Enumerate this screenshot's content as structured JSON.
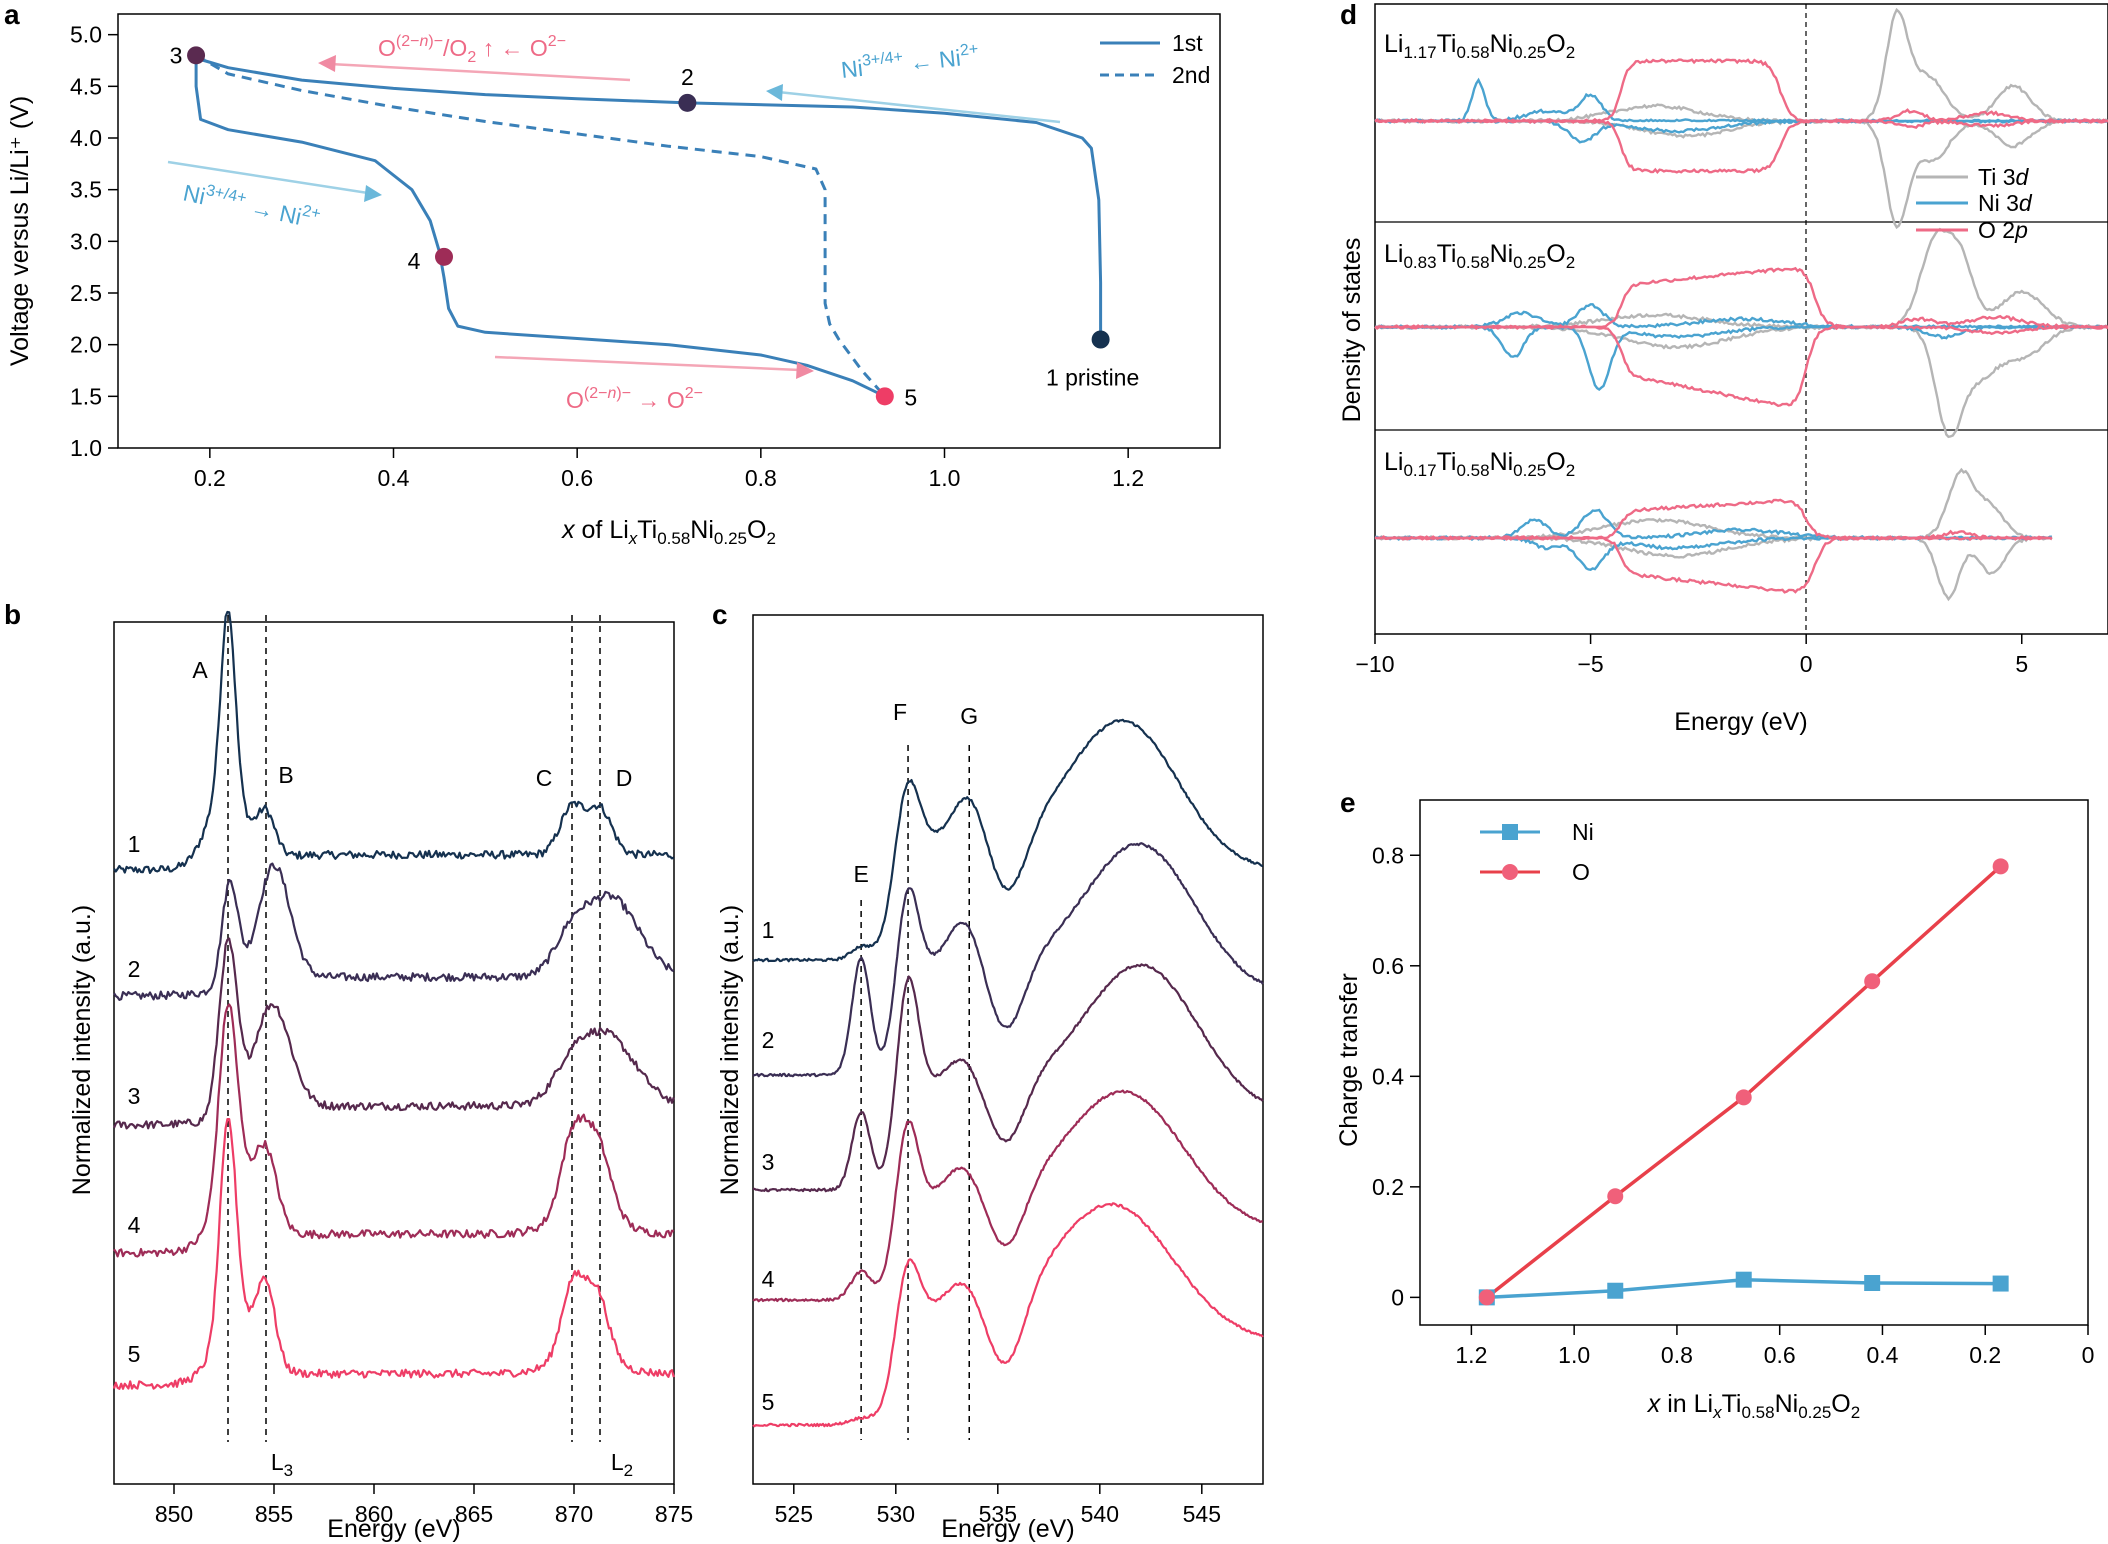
{
  "colors": {
    "navy": "#1a3a5c",
    "blue": "#3a80b8",
    "ni_blue": "#4aa3d0",
    "pink": "#ee6a86",
    "red": "#e8404a",
    "grey": "#b5b5b5",
    "curve1": "#15314f",
    "curve2": "#3a2e54",
    "curve3": "#56294d",
    "curve4": "#9e2c57",
    "curve5": "#ee3d66"
  },
  "chart_data": [
    {
      "id": "a",
      "panel_label": "a",
      "type": "line",
      "xlabel_parts": [
        "x",
        " of Li",
        "x",
        "Ti",
        "0.58",
        "Ni",
        "0.25",
        "O",
        "2"
      ],
      "ylabel": "Voltage versus Li/Li⁺ (V)",
      "xlim": [
        0.1,
        1.3
      ],
      "ylim": [
        1.0,
        5.2
      ],
      "xticks": [
        "0.2",
        "0.4",
        "0.6",
        "0.8",
        "1.0",
        "1.2"
      ],
      "yticks": [
        "1.0",
        "1.5",
        "2.0",
        "2.5",
        "3.0",
        "3.5",
        "4.0",
        "4.5",
        "5.0"
      ],
      "series": [
        {
          "name": "1st",
          "style": "solid",
          "x": [
            1.17,
            1.17,
            1.168,
            1.16,
            1.15,
            1.1,
            1.0,
            0.9,
            0.72,
            0.6,
            0.5,
            0.4,
            0.3,
            0.22,
            0.19,
            0.185,
            0.185,
            0.19,
            0.22,
            0.3,
            0.38,
            0.42,
            0.44,
            0.45,
            0.455,
            0.46,
            0.47,
            0.5,
            0.6,
            0.7,
            0.8,
            0.85,
            0.9,
            0.935
          ],
          "y": [
            2.05,
            2.6,
            3.4,
            3.9,
            4.0,
            4.15,
            4.24,
            4.3,
            4.34,
            4.38,
            4.42,
            4.48,
            4.56,
            4.68,
            4.76,
            4.8,
            4.5,
            4.18,
            4.08,
            3.96,
            3.78,
            3.5,
            3.2,
            2.9,
            2.65,
            2.35,
            2.18,
            2.12,
            2.06,
            2.0,
            1.9,
            1.8,
            1.65,
            1.5
          ]
        },
        {
          "name": "2nd",
          "style": "dashed",
          "x": [
            0.185,
            0.22,
            0.3,
            0.4,
            0.5,
            0.6,
            0.7,
            0.8,
            0.86,
            0.87,
            0.87,
            0.87,
            0.875,
            0.885,
            0.91,
            0.935
          ],
          "y": [
            4.8,
            4.62,
            4.46,
            4.3,
            4.16,
            4.04,
            3.92,
            3.82,
            3.7,
            3.5,
            3.0,
            2.4,
            2.2,
            2.05,
            1.75,
            1.5
          ]
        }
      ],
      "points": [
        {
          "label": "3",
          "x": 0.185,
          "y": 4.8,
          "color": "#5a2a50"
        },
        {
          "label": "2",
          "x": 0.72,
          "y": 4.34,
          "color": "#3a2e54"
        },
        {
          "label": "4",
          "x": 0.455,
          "y": 2.85,
          "color": "#9e2c57"
        },
        {
          "label": "5",
          "x": 0.935,
          "y": 1.5,
          "color": "#ee3d66"
        },
        {
          "label": "1 pristine",
          "x": 1.17,
          "y": 2.05,
          "color": "#15314f"
        }
      ],
      "legend": [
        "1st",
        "2nd"
      ],
      "annotations": {
        "o_redox_top": "O(2−n)−/O2 ↑ ← O2−",
        "ni_ox_top": "Ni3+/4+ ← Ni2+",
        "ni_red_left": "Ni3+/4+ → Ni2+",
        "o_red_bottom": "O(2−n)− → O2−"
      }
    },
    {
      "id": "b",
      "panel_label": "b",
      "type": "line",
      "xlabel": "Energy (eV)",
      "ylabel": "Normalized intensity (a.u.)",
      "xlim": [
        847,
        875
      ],
      "xticks": [
        "850",
        "855",
        "860",
        "865",
        "870",
        "875"
      ],
      "series_labels": [
        "1",
        "2",
        "3",
        "4",
        "5"
      ],
      "peak_labels": [
        "A",
        "B",
        "C",
        "D",
        "L3",
        "L2"
      ],
      "dashed_lines_x": [
        852.7,
        854.6,
        869.9,
        871.3
      ]
    },
    {
      "id": "c",
      "panel_label": "c",
      "type": "line",
      "xlabel": "Energy (eV)",
      "ylabel": "Normalized intensity (a.u.)",
      "xlim": [
        523,
        548
      ],
      "xticks": [
        "525",
        "530",
        "535",
        "540",
        "545"
      ],
      "series_labels": [
        "1",
        "2",
        "3",
        "4",
        "5"
      ],
      "peak_labels": [
        "E",
        "F",
        "G"
      ],
      "dashed_lines_x": [
        528.3,
        530.6,
        533.6
      ]
    },
    {
      "id": "d",
      "panel_label": "d",
      "type": "line",
      "xlabel": "Energy (eV)",
      "ylabel": "Density of states",
      "xlim": [
        -10,
        7
      ],
      "xticks": [
        "−10",
        "−5",
        "0",
        "5"
      ],
      "subpanels": [
        "Li1.17Ti0.58Ni0.25O2",
        "Li0.83Ti0.58Ni0.25O2",
        "Li0.17Ti0.58Ni0.25O2"
      ],
      "legend": [
        "Ti 3d",
        "Ni 3d",
        "O 2p"
      ]
    },
    {
      "id": "e",
      "panel_label": "e",
      "type": "line",
      "xlabel_parts": [
        "x",
        " in Li",
        "x",
        "Ti",
        "0.58",
        "Ni",
        "0.25",
        "O",
        "2"
      ],
      "ylabel": "Charge transfer",
      "xlim": [
        1.3,
        0
      ],
      "ylim": [
        -0.05,
        0.9
      ],
      "xticks": [
        "1.2",
        "1.0",
        "0.8",
        "0.6",
        "0.4",
        "0.2",
        "0"
      ],
      "yticks": [
        "0",
        "0.2",
        "0.4",
        "0.6",
        "0.8"
      ],
      "series": [
        {
          "name": "Ni",
          "x": [
            1.17,
            0.92,
            0.67,
            0.42,
            0.17
          ],
          "y": [
            0.0,
            0.012,
            0.032,
            0.026,
            0.025
          ],
          "color": "#4aa3d0",
          "marker": "square"
        },
        {
          "name": "O",
          "x": [
            1.17,
            0.92,
            0.67,
            0.42,
            0.17
          ],
          "y": [
            0.0,
            0.183,
            0.362,
            0.572,
            0.78
          ],
          "color": "#e8404a",
          "marker": "circle"
        }
      ]
    }
  ]
}
